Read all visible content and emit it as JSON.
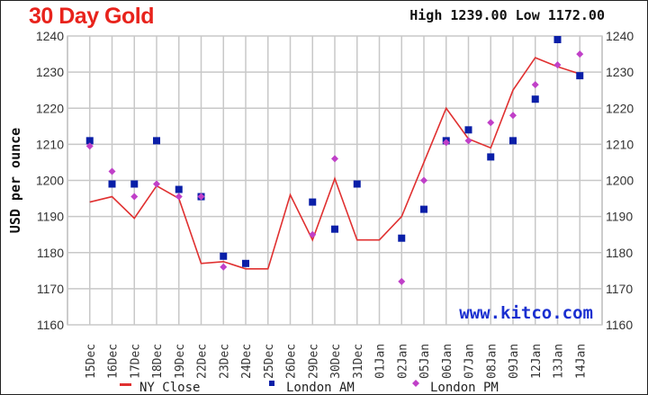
{
  "chart_data": {
    "type": "line",
    "title": "30 Day Gold",
    "subtitle": "High 1239.00 Low 1172.00",
    "ylabel": "USD per ounce",
    "xlabel": "",
    "ylim": [
      1160,
      1240
    ],
    "yticks": [
      1160,
      1170,
      1180,
      1190,
      1200,
      1210,
      1220,
      1230,
      1240
    ],
    "grid": true,
    "legend_position": "bottom",
    "watermark": "www.kitco.com",
    "categories": [
      "15Dec",
      "16Dec",
      "17Dec",
      "18Dec",
      "19Dec",
      "22Dec",
      "23Dec",
      "24Dec",
      "25Dec",
      "26Dec",
      "29Dec",
      "30Dec",
      "31Dec",
      "01Jan",
      "02Jan",
      "05Jan",
      "06Jan",
      "07Jan",
      "08Jan",
      "09Jan",
      "12Jan",
      "13Jan",
      "14Jan"
    ],
    "series": [
      {
        "name": "NY Close",
        "kind": "line",
        "color": "#e03030",
        "values": [
          1194,
          1195.5,
          1189.5,
          1198.5,
          1195,
          1177,
          1177.5,
          1175.5,
          1175.5,
          1196,
          1183.5,
          1200.5,
          1183.5,
          1183.5,
          1190,
          1205,
          1220,
          1211.5,
          1209,
          1225,
          1234,
          1231.5,
          1229.5
        ]
      },
      {
        "name": "London AM",
        "kind": "square",
        "color": "#0a1fa8",
        "values": [
          1211,
          1199,
          1199,
          1211,
          1197.5,
          1195.5,
          1179,
          1177,
          null,
          null,
          1194,
          1186.5,
          1199,
          null,
          1184,
          1192,
          1211,
          1214,
          1206.5,
          1211,
          1222.5,
          1239,
          1229
        ]
      },
      {
        "name": "London PM",
        "kind": "diamond",
        "color": "#c040c8",
        "values": [
          1209.5,
          1202.5,
          1195.5,
          1199,
          1195.5,
          1195.5,
          1176,
          null,
          null,
          null,
          1185,
          1206,
          null,
          null,
          1172,
          1200,
          1210.5,
          1211,
          1216,
          1218,
          1226.5,
          1232,
          1235
        ]
      }
    ]
  }
}
